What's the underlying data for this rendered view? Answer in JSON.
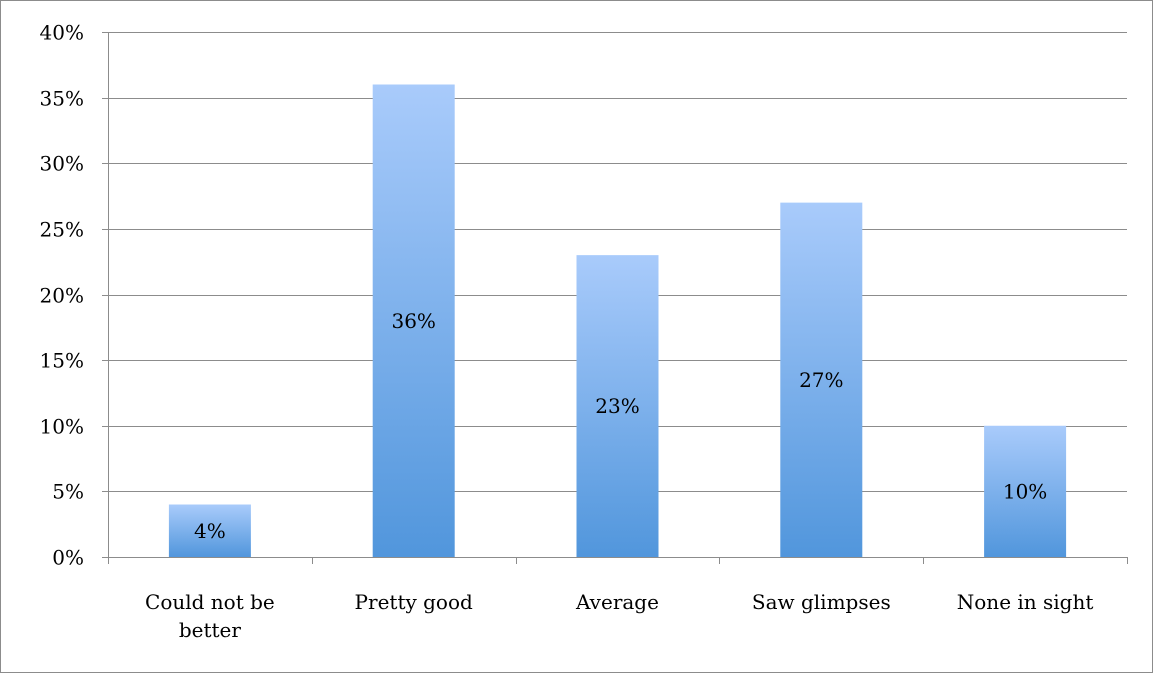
{
  "chart_data": {
    "type": "bar",
    "categories": [
      [
        "Could not be",
        "better"
      ],
      [
        "Pretty good"
      ],
      [
        "Average"
      ],
      [
        "Saw glimpses"
      ],
      [
        "None in sight"
      ]
    ],
    "values": [
      4,
      36,
      23,
      27,
      10
    ],
    "data_labels": [
      "4%",
      "36%",
      "23%",
      "27%",
      "10%"
    ],
    "ylim": [
      0,
      40
    ],
    "yticks": [
      0,
      5,
      10,
      15,
      20,
      25,
      30,
      35,
      40
    ],
    "ytick_labels": [
      "0%",
      "5%",
      "10%",
      "15%",
      "20%",
      "25%",
      "30%",
      "35%",
      "40%"
    ],
    "grid": true,
    "legend": "none",
    "colors": {
      "bar_top": "#a9cbfb",
      "bar_bottom": "#5196dc",
      "grid": "#8c8c8c",
      "axis": "#8c8c8c",
      "text": "#000000"
    }
  }
}
